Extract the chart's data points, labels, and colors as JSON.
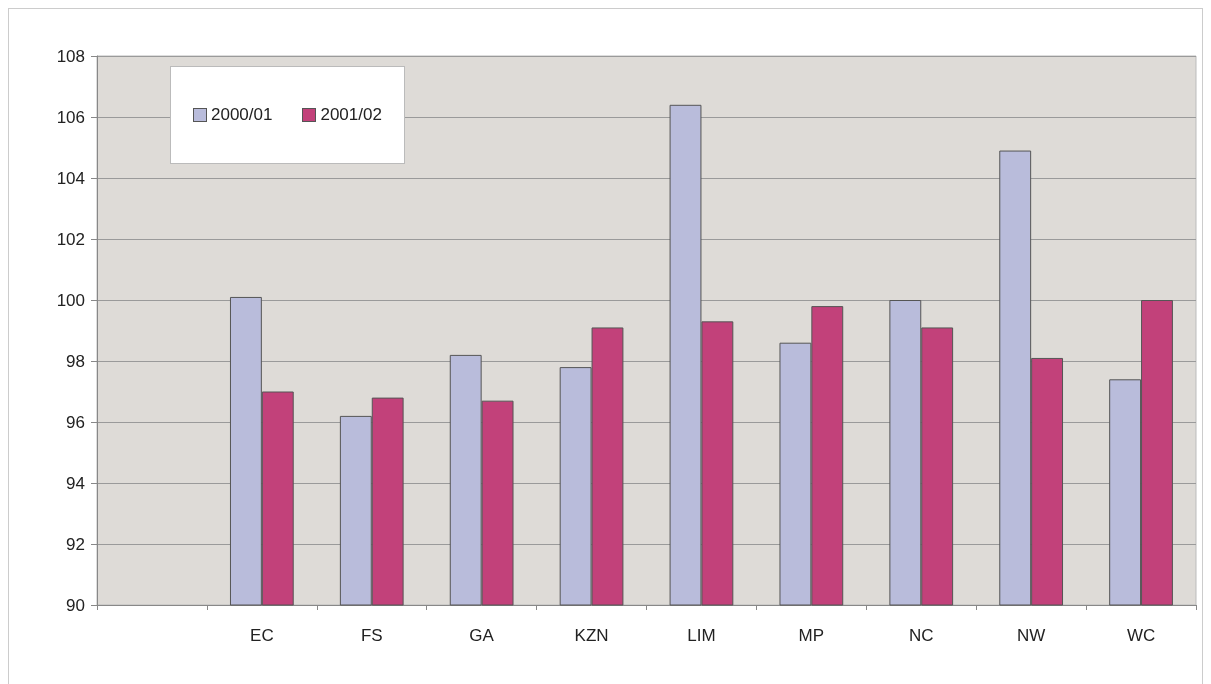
{
  "chart_data": {
    "type": "bar",
    "categories": [
      null,
      "EC",
      "FS",
      "GA",
      "KZN",
      "LIM",
      "MP",
      "NC",
      "NW",
      "WC"
    ],
    "series": [
      {
        "name": "2000/01",
        "color": "#b9bcdb",
        "values": [
          null,
          100.1,
          96.2,
          98.2,
          97.8,
          106.4,
          98.6,
          100.0,
          104.9,
          97.4
        ]
      },
      {
        "name": "2001/02",
        "color": "#c2417a",
        "values": [
          null,
          97.0,
          96.8,
          96.7,
          99.1,
          99.3,
          99.8,
          99.1,
          98.1,
          100.0
        ]
      }
    ],
    "ylim": [
      90,
      108
    ],
    "yticks": [
      90,
      92,
      94,
      96,
      98,
      100,
      102,
      104,
      106,
      108
    ],
    "grid": "y",
    "legend": "top left"
  }
}
